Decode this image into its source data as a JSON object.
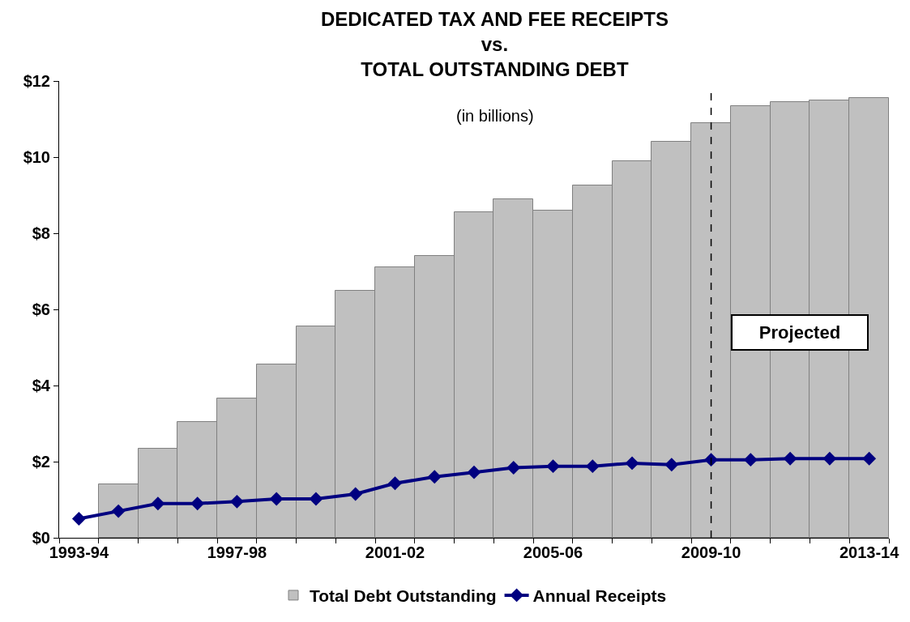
{
  "chart_data": {
    "type": "bar",
    "title": "DEDICATED TAX AND FEE RECEIPTS\nvs.\nTOTAL OUTSTANDING DEBT",
    "subtitle": "(in billions)",
    "categories": [
      "1993-94",
      null,
      null,
      null,
      "1997-98",
      null,
      null,
      null,
      "2001-02",
      null,
      null,
      null,
      "2005-06",
      null,
      null,
      null,
      "2009-10",
      null,
      null,
      null,
      "2013-14"
    ],
    "ylim": [
      0,
      12
    ],
    "yticks": [
      {
        "value": 0,
        "label": "$0"
      },
      {
        "value": 2,
        "label": "$2"
      },
      {
        "value": 4,
        "label": "$4"
      },
      {
        "value": 6,
        "label": "$6"
      },
      {
        "value": 8,
        "label": "$8"
      },
      {
        "value": 10,
        "label": "$10"
      },
      {
        "value": 12,
        "label": "$12"
      }
    ],
    "series": [
      {
        "name": "Total Debt Outstanding",
        "color": "#c0c0c0",
        "values": [
          null,
          1.4,
          2.35,
          3.05,
          3.65,
          4.55,
          5.55,
          6.5,
          7.1,
          7.4,
          8.55,
          8.9,
          8.6,
          9.25,
          9.9,
          10.4,
          10.9,
          11.35,
          11.45,
          11.5,
          11.55
        ]
      },
      {
        "name": "Annual Receipts",
        "type": "line",
        "color": "#000080",
        "marker": "diamond",
        "line_style": "solid",
        "values": [
          0.5,
          0.7,
          0.9,
          0.9,
          0.95,
          1.02,
          1.02,
          1.15,
          1.43,
          1.6,
          1.72,
          1.84,
          1.88,
          1.88,
          1.96,
          1.92,
          2.05,
          2.05,
          2.08,
          2.08,
          2.08
        ]
      }
    ],
    "ref_lines": [
      {
        "axis": "x",
        "value": "2009-10",
        "color": "#000000",
        "line_style": "dashed"
      }
    ],
    "annotations": [
      "Projected"
    ],
    "grid": false,
    "legend": "bottom"
  }
}
